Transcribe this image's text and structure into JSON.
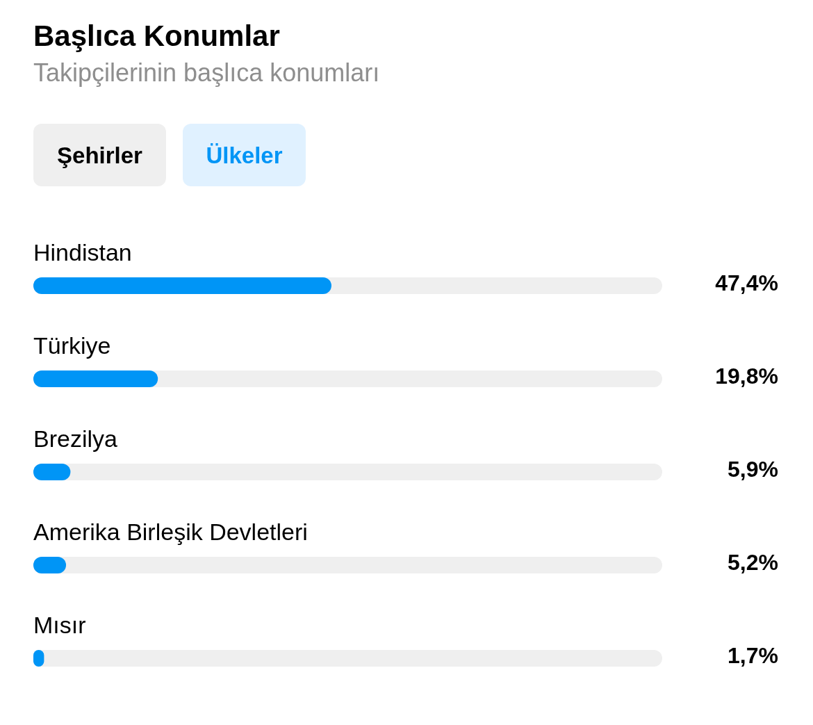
{
  "chart_data": {
    "type": "bar",
    "orientation": "horizontal",
    "title": "Başlıca Konumlar",
    "subtitle": "Takipçilerinin başlıca konumları",
    "annotations": [
      "Şehirler",
      "Ülkeler"
    ],
    "categories": [
      "Hindistan",
      "Türkiye",
      "Brezilya",
      "Amerika Birleşik Devletleri",
      "Mısır"
    ],
    "values": [
      47.4,
      19.8,
      5.9,
      5.2,
      1.7
    ],
    "value_labels": [
      "47,4%",
      "19,8%",
      "5,9%",
      "5,2%",
      "1,7%"
    ],
    "color": "#0095f6",
    "xlim": [
      0,
      100
    ],
    "tick_labels": false
  }
}
